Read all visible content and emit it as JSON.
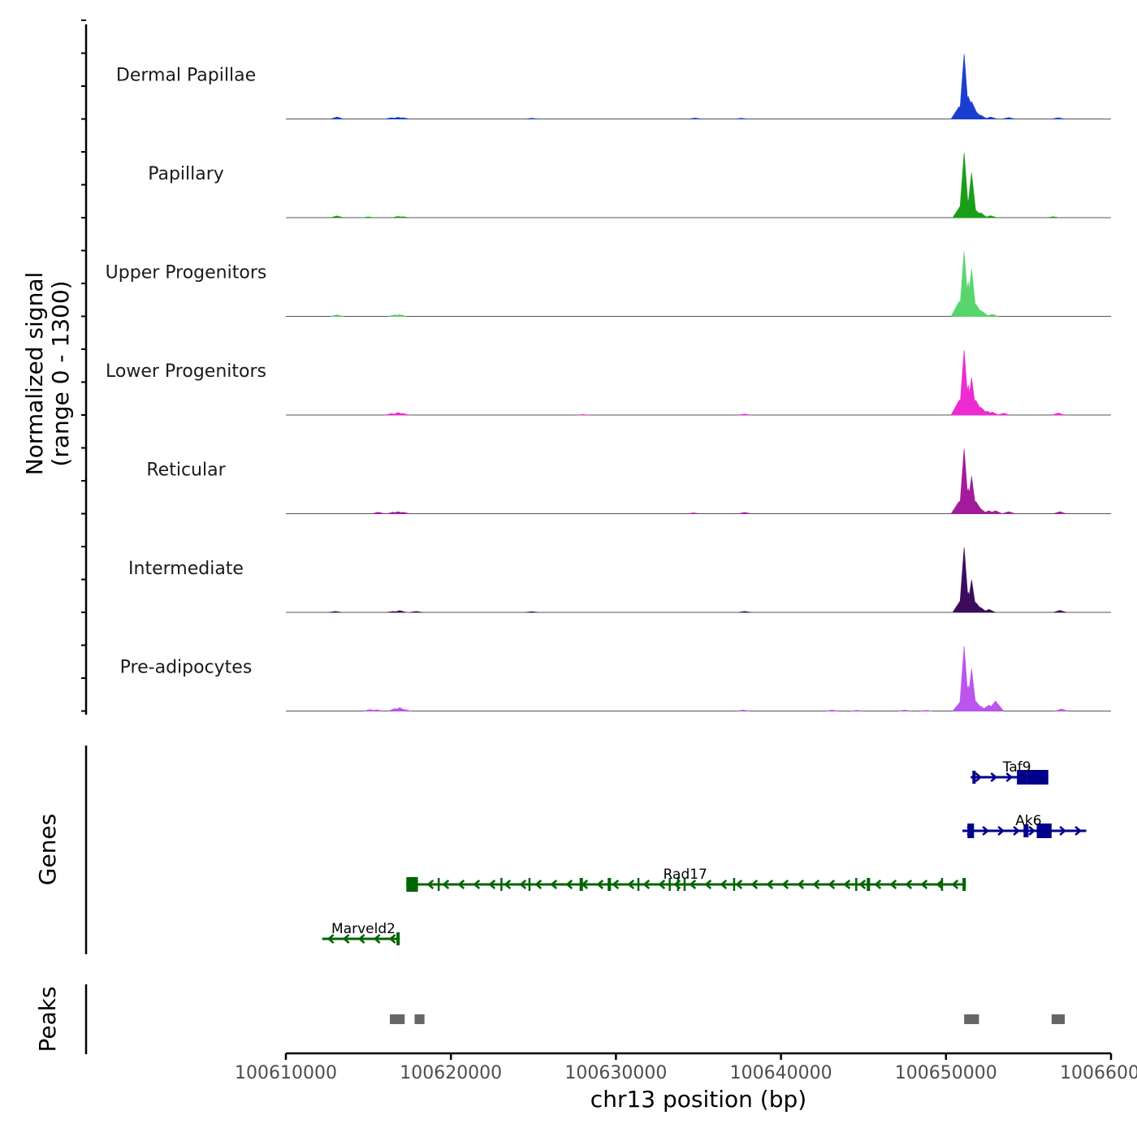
{
  "chart_data": {
    "type": "area",
    "title": "",
    "ylabel_line1": "Normalized signal",
    "ylabel_line2": "(range 0 - 1300)",
    "xlabel": "chr13 position (bp)",
    "xlim": [
      100610000,
      100660000
    ],
    "ylim": [
      0,
      1300
    ],
    "x_ticks": [
      100610000,
      100620000,
      100630000,
      100640000,
      100650000,
      100660000
    ],
    "x_tick_labels": [
      "100610000",
      "100620000",
      "100630000",
      "100640000",
      "100650000",
      "100660000"
    ],
    "series": [
      {
        "name": "Dermal Papillae",
        "color": "#1a3ecf",
        "peaks": [
          [
            100613100,
            40
          ],
          [
            100616400,
            25
          ],
          [
            100616800,
            35
          ],
          [
            100617100,
            25
          ],
          [
            100624900,
            15
          ],
          [
            100634800,
            20
          ],
          [
            100637600,
            15
          ],
          [
            100650800,
            250
          ],
          [
            100651100,
            1300
          ],
          [
            100651350,
            450
          ],
          [
            100651550,
            350
          ],
          [
            100651800,
            150
          ],
          [
            100652100,
            80
          ],
          [
            100652700,
            40
          ],
          [
            100653800,
            30
          ],
          [
            100656800,
            25
          ]
        ]
      },
      {
        "name": "Papillary",
        "color": "#1a9e1a",
        "peaks": [
          [
            100613100,
            35
          ],
          [
            100615000,
            15
          ],
          [
            100616800,
            25
          ],
          [
            100617100,
            20
          ],
          [
            100650900,
            250
          ],
          [
            100651100,
            1300
          ],
          [
            100651350,
            350
          ],
          [
            100651550,
            900
          ],
          [
            100651800,
            150
          ],
          [
            100652100,
            100
          ],
          [
            100652700,
            40
          ],
          [
            100656500,
            20
          ]
        ]
      },
      {
        "name": "Upper Progenitors",
        "color": "#58d66d",
        "peaks": [
          [
            100613100,
            30
          ],
          [
            100616600,
            30
          ],
          [
            100616900,
            35
          ],
          [
            100650800,
            300
          ],
          [
            100651100,
            1300
          ],
          [
            100651350,
            700
          ],
          [
            100651550,
            950
          ],
          [
            100651800,
            250
          ],
          [
            100652100,
            120
          ],
          [
            100652800,
            40
          ]
        ]
      },
      {
        "name": "Lower Progenitors",
        "color": "#ee2ad2",
        "peaks": [
          [
            100616400,
            30
          ],
          [
            100616800,
            50
          ],
          [
            100617100,
            30
          ],
          [
            100628000,
            10
          ],
          [
            100637800,
            20
          ],
          [
            100650800,
            300
          ],
          [
            100651100,
            1300
          ],
          [
            100651350,
            600
          ],
          [
            100651550,
            750
          ],
          [
            100651800,
            300
          ],
          [
            100652100,
            160
          ],
          [
            100652500,
            80
          ],
          [
            100652800,
            60
          ],
          [
            100653500,
            35
          ],
          [
            100656800,
            40
          ]
        ]
      },
      {
        "name": "Reticular",
        "color": "#a21b9b",
        "peaks": [
          [
            100615600,
            30
          ],
          [
            100616500,
            30
          ],
          [
            100616800,
            40
          ],
          [
            100617100,
            30
          ],
          [
            100634700,
            15
          ],
          [
            100637800,
            25
          ],
          [
            100650800,
            250
          ],
          [
            100651100,
            1300
          ],
          [
            100651350,
            500
          ],
          [
            100651550,
            750
          ],
          [
            100651800,
            250
          ],
          [
            100652100,
            100
          ],
          [
            100652600,
            60
          ],
          [
            100653000,
            60
          ],
          [
            100653800,
            40
          ],
          [
            100656900,
            40
          ]
        ]
      },
      {
        "name": "Intermediate",
        "color": "#3d0c5c",
        "peaks": [
          [
            100613000,
            20
          ],
          [
            100616500,
            20
          ],
          [
            100616900,
            35
          ],
          [
            100617900,
            20
          ],
          [
            100624900,
            15
          ],
          [
            100637800,
            20
          ],
          [
            100650900,
            250
          ],
          [
            100651100,
            1300
          ],
          [
            100651350,
            400
          ],
          [
            100651550,
            650
          ],
          [
            100651800,
            200
          ],
          [
            100652100,
            100
          ],
          [
            100652600,
            60
          ],
          [
            100656900,
            40
          ]
        ]
      },
      {
        "name": "Pre-adipocytes",
        "color": "#bb55ee",
        "peaks": [
          [
            100615100,
            30
          ],
          [
            100615500,
            25
          ],
          [
            100616600,
            50
          ],
          [
            100616900,
            70
          ],
          [
            100617200,
            30
          ],
          [
            100637700,
            20
          ],
          [
            100643100,
            20
          ],
          [
            100644600,
            15
          ],
          [
            100647500,
            20
          ],
          [
            100648800,
            15
          ],
          [
            100650900,
            200
          ],
          [
            100651100,
            1300
          ],
          [
            100651350,
            500
          ],
          [
            100651550,
            850
          ],
          [
            100651800,
            200
          ],
          [
            100652100,
            100
          ],
          [
            100652600,
            120
          ],
          [
            100653000,
            200
          ],
          [
            100657000,
            40
          ]
        ]
      }
    ],
    "genes_label": "Genes",
    "genes": [
      {
        "name": "Taf9",
        "start": 100651500,
        "end": 100656200,
        "strand": "+",
        "color": "#00008b",
        "label_x": 100654300,
        "exons": [
          [
            100651600,
            100651800
          ],
          [
            100654300,
            100654900
          ],
          [
            100654900,
            100656200
          ]
        ]
      },
      {
        "name": "Ak6",
        "start": 100651000,
        "end": 100658500,
        "strand": "+",
        "color": "#00008b",
        "label_x": 100655000,
        "exons": [
          [
            100651300,
            100651700
          ],
          [
            100654700,
            100655000
          ],
          [
            100655500,
            100656400
          ]
        ]
      },
      {
        "name": "Rad17",
        "start": 100617300,
        "end": 100651200,
        "strand": "-",
        "color": "#006400",
        "label_x": 100634200,
        "exons": [
          [
            100617300,
            100618000
          ],
          [
            100619200,
            100619300
          ],
          [
            100623000,
            100623100
          ],
          [
            100624700,
            100624800
          ],
          [
            100627800,
            100628000
          ],
          [
            100629500,
            100629700
          ],
          [
            100631300,
            100631400
          ],
          [
            100633200,
            100633300
          ],
          [
            100633700,
            100633800
          ],
          [
            100634100,
            100634200
          ],
          [
            100637100,
            100637200
          ],
          [
            100644500,
            100644600
          ],
          [
            100645200,
            100645400
          ],
          [
            100649700,
            100649800
          ],
          [
            100651000,
            100651200
          ]
        ]
      },
      {
        "name": "Marveld2",
        "start": 100612200,
        "end": 100616900,
        "strand": "-",
        "color": "#006400",
        "label_x": 100614700,
        "exons": [
          [
            100616700,
            100616900
          ]
        ]
      }
    ],
    "peaks_label": "Peaks",
    "peaks_regions": [
      [
        100616300,
        100617200
      ],
      [
        100617800,
        100618400
      ],
      [
        100651100,
        100652000
      ],
      [
        100656400,
        100657200
      ]
    ],
    "peaks_color": "#666666"
  }
}
